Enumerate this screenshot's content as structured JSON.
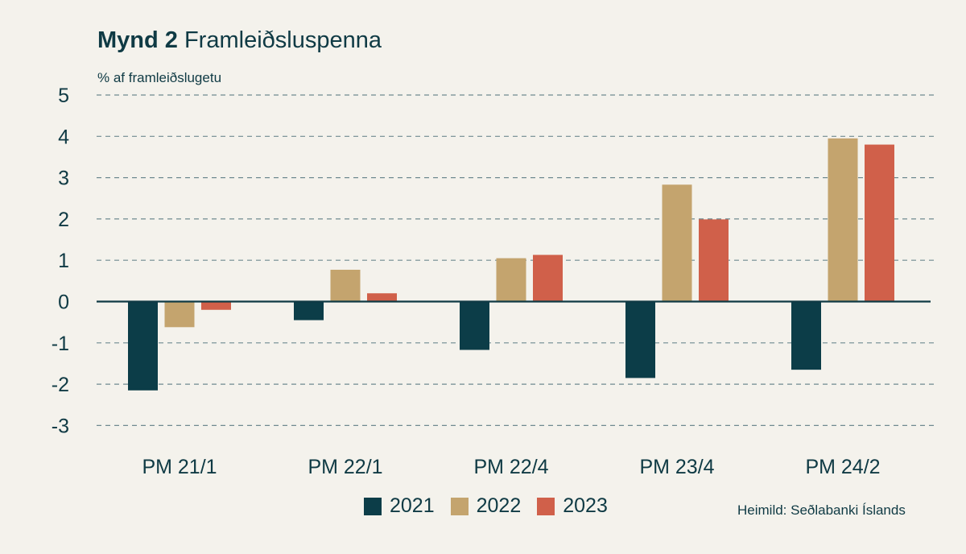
{
  "title": {
    "prefix": "Mynd 2",
    "text": "Framleiðsluspenna"
  },
  "source": "Heimild: Seðlabanki Íslands",
  "colors": {
    "background": "#f4f2ec",
    "text": "#0f3a44",
    "grid": "#6f8a90",
    "axis": "#0f3a44"
  },
  "chart_data": {
    "type": "bar",
    "ylabel": "% af framleiðslugetu",
    "xlabel": "",
    "categories": [
      "PM 21/1",
      "PM 22/1",
      "PM 22/4",
      "PM 23/4",
      "PM 24/2"
    ],
    "series": [
      {
        "name": "2021",
        "color": "#0c3d48",
        "values": [
          -2.15,
          -0.45,
          -1.17,
          -1.85,
          -1.65
        ]
      },
      {
        "name": "2022",
        "color": "#c4a46e",
        "values": [
          -0.62,
          0.77,
          1.05,
          2.83,
          3.95
        ]
      },
      {
        "name": "2023",
        "color": "#d0604a",
        "values": [
          -0.2,
          0.2,
          1.13,
          1.99,
          3.8
        ]
      }
    ],
    "ylim": [
      -3,
      5
    ],
    "yticks": [
      "5",
      "4",
      "3",
      "2",
      "1",
      "0",
      "-1",
      "-2",
      "-3"
    ],
    "ytick_values": [
      5,
      4,
      3,
      2,
      1,
      0,
      -1,
      -2,
      -3
    ],
    "grid": true,
    "legend_position": "bottom"
  }
}
